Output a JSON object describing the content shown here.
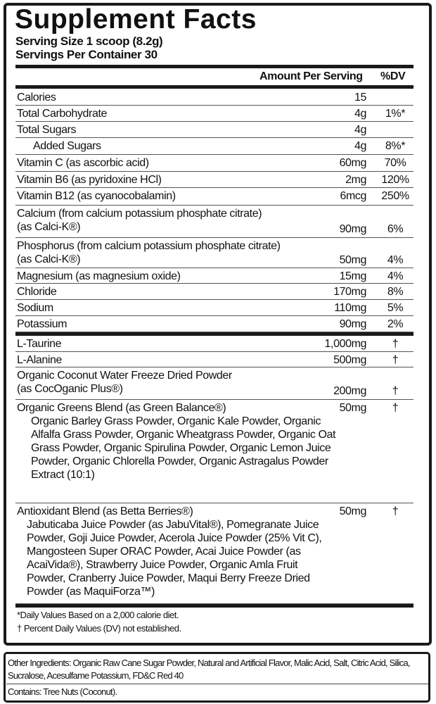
{
  "title": "Supplement Facts",
  "serving_size": "Serving Size 1 scoop (8.2g)",
  "servings_per_container": "Servings Per Container 30",
  "header": {
    "amount": "Amount Per Serving",
    "dv": "%DV"
  },
  "rows": [
    {
      "name": "Calories",
      "amount": "15",
      "dv": ""
    },
    {
      "name": "Total Carbohydrate",
      "amount": "4g",
      "dv": "1%*"
    },
    {
      "name": "Total Sugars",
      "amount": "4g",
      "dv": ""
    },
    {
      "name": "Added Sugars",
      "amount": "4g",
      "dv": "8%*"
    },
    {
      "name": "Vitamin C (as ascorbic acid)",
      "amount": "60mg",
      "dv": "70%"
    },
    {
      "name": "Vitamin B6 (as pyridoxine HCl)",
      "amount": "2mg",
      "dv": "120%"
    },
    {
      "name": "Vitamin B12 (as cyanocobalamin)",
      "amount": "6mcg",
      "dv": "250%"
    },
    {
      "name": "Calcium (from calcium potassium phosphate citrate)",
      "sub": "(as Calci-K®)",
      "amount": "90mg",
      "dv": "6%"
    },
    {
      "name": "Phosphorus (from calcium potassium phosphate citrate)",
      "sub": "(as Calci-K®)",
      "amount": "50mg",
      "dv": "4%"
    },
    {
      "name": "Magnesium (as magnesium oxide)",
      "amount": "15mg",
      "dv": "4%"
    },
    {
      "name": "Chloride",
      "amount": "170mg",
      "dv": "8%"
    },
    {
      "name": "Sodium",
      "amount": "110mg",
      "dv": "5%"
    },
    {
      "name": "Potassium",
      "amount": "90mg",
      "dv": "2%"
    }
  ],
  "rows2": [
    {
      "name": "L-Taurine",
      "amount": "1,000mg",
      "dv": "†"
    },
    {
      "name": "L-Alanine",
      "amount": "500mg",
      "dv": "†"
    },
    {
      "name": "Organic Coconut Water Freeze Dried Powder",
      "sub": "(as CocOganic Plus®)",
      "amount": "200mg",
      "dv": "†"
    },
    {
      "name": "Organic Greens Blend (as Green Balance®)",
      "sub": "Organic Barley Grass Powder, Organic Kale Powder, Organic Alfalfa Grass Powder, Organic Wheatgrass Powder, Organic Oat Grass Powder, Organic Spirulina Powder, Organic Lemon Juice Powder, Organic Chlorella Powder, Organic Astragalus Powder Extract (10:1)",
      "amount": "50mg",
      "dv": "†"
    },
    {
      "name": "Antioxidant Blend (as Betta Berries®)",
      "sub": "Jabuticaba Juice Powder (as JabuVital®), Pomegranate Juice Powder, Goji Juice Powder, Acerola Juice Powder (25% Vit C), Mangosteen Super ORAC Powder, Acai Juice Powder (as  AcaiVida®), Strawberry Juice Powder, Organic Amla Fruit Powder, Cranberry Juice Powder, Maqui Berry Freeze Dried Powder (as MaquiForza™)",
      "amount": "50mg",
      "dv": "†"
    }
  ],
  "footnotes": [
    "*Daily Values Based on a 2,000 calorie diet.",
    "† Percent Daily Values (DV) not established."
  ],
  "other_ingredients": "Other Ingredients: Organic Raw Cane Sugar Powder, Natural and Artificial Flavor, Malic Acid, Salt, Citric Acid, Silica, Sucralose, Acesulfame Potassium, FD&C Red 40",
  "contains": "Contains: Tree Nuts (Coconut)."
}
